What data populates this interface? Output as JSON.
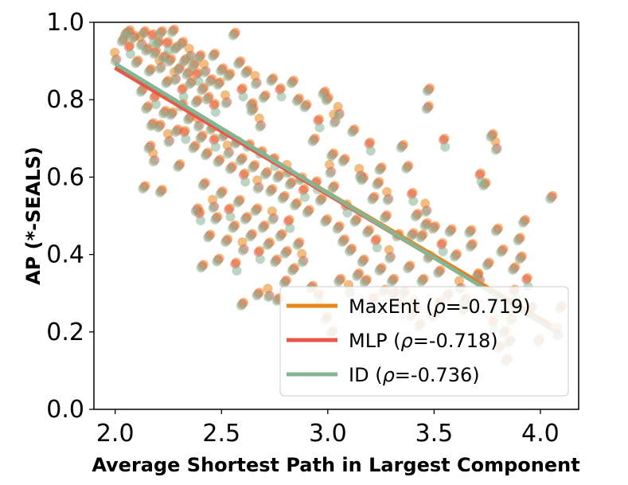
{
  "chart_data": {
    "type": "scatter",
    "title": "",
    "xlabel": "Average Shortest Path in Largest Component",
    "ylabel": "AP (*-SEALS)",
    "xlim": [
      1.9,
      4.18
    ],
    "ylim": [
      0.0,
      1.0
    ],
    "x_ticks": [
      "2.0",
      "2.5",
      "3.0",
      "3.5",
      "4.0"
    ],
    "y_ticks": [
      "0.0",
      "0.2",
      "0.4",
      "0.6",
      "0.8",
      "1.0"
    ],
    "grid": false,
    "legend_position": "lower-right",
    "series": [
      {
        "name": "MaxEnt",
        "rho_label": "-0.719",
        "color": "#e8861a",
        "fit": {
          "x": [
            2.0,
            4.05
          ],
          "y": [
            0.885,
            0.218
          ]
        }
      },
      {
        "name": "MLP",
        "rho_label": "-0.718",
        "color": "#e8574a",
        "fit": {
          "x": [
            2.0,
            4.05
          ],
          "y": [
            0.882,
            0.212
          ]
        }
      },
      {
        "name": "ID",
        "rho_label": "-0.736",
        "color": "#86b592",
        "fit": {
          "x": [
            2.0,
            4.08
          ],
          "y": [
            0.893,
            0.198
          ]
        }
      }
    ],
    "points": [
      [
        2.0,
        0.91
      ],
      [
        2.04,
        0.95
      ],
      [
        2.05,
        0.97
      ],
      [
        2.06,
        0.98
      ],
      [
        2.07,
        0.93
      ],
      [
        2.09,
        0.96
      ],
      [
        2.1,
        0.9
      ],
      [
        2.12,
        0.95
      ],
      [
        2.14,
        0.97
      ],
      [
        2.15,
        0.93
      ],
      [
        2.16,
        0.88
      ],
      [
        2.18,
        0.96
      ],
      [
        2.19,
        0.92
      ],
      [
        2.2,
        0.95
      ],
      [
        2.21,
        0.89
      ],
      [
        2.22,
        0.97
      ],
      [
        2.23,
        0.91
      ],
      [
        2.24,
        0.85
      ],
      [
        2.25,
        0.94
      ],
      [
        2.26,
        0.9
      ],
      [
        2.27,
        0.98
      ],
      [
        2.28,
        0.86
      ],
      [
        2.29,
        0.93
      ],
      [
        2.3,
        0.88
      ],
      [
        2.31,
        0.95
      ],
      [
        2.32,
        0.82
      ],
      [
        2.33,
        0.9
      ],
      [
        2.34,
        0.87
      ],
      [
        2.35,
        0.92
      ],
      [
        2.36,
        0.84
      ],
      [
        2.37,
        0.89
      ],
      [
        2.38,
        0.8
      ],
      [
        2.39,
        0.86
      ],
      [
        2.4,
        0.91
      ],
      [
        2.41,
        0.83
      ],
      [
        2.42,
        0.88
      ],
      [
        2.44,
        0.8
      ],
      [
        2.45,
        0.85
      ],
      [
        2.46,
        0.92
      ],
      [
        2.47,
        0.78
      ],
      [
        2.49,
        0.84
      ],
      [
        2.5,
        0.88
      ],
      [
        2.52,
        0.8
      ],
      [
        2.54,
        0.86
      ],
      [
        2.56,
        0.97
      ],
      [
        2.58,
        0.9
      ],
      [
        2.6,
        0.82
      ],
      [
        2.62,
        0.87
      ],
      [
        2.64,
        0.79
      ],
      [
        2.66,
        0.85
      ],
      [
        2.13,
        0.82
      ],
      [
        2.15,
        0.78
      ],
      [
        2.17,
        0.74
      ],
      [
        2.19,
        0.8
      ],
      [
        2.21,
        0.73
      ],
      [
        2.23,
        0.77
      ],
      [
        2.25,
        0.7
      ],
      [
        2.27,
        0.76
      ],
      [
        2.29,
        0.72
      ],
      [
        2.31,
        0.79
      ],
      [
        2.33,
        0.71
      ],
      [
        2.35,
        0.75
      ],
      [
        2.37,
        0.68
      ],
      [
        2.39,
        0.74
      ],
      [
        2.41,
        0.7
      ],
      [
        2.43,
        0.66
      ],
      [
        2.45,
        0.73
      ],
      [
        2.47,
        0.69
      ],
      [
        2.49,
        0.64
      ],
      [
        2.51,
        0.71
      ],
      [
        2.53,
        0.67
      ],
      [
        2.55,
        0.62
      ],
      [
        2.57,
        0.69
      ],
      [
        2.59,
        0.65
      ],
      [
        2.61,
        0.6
      ],
      [
        2.63,
        0.68
      ],
      [
        2.65,
        0.63
      ],
      [
        2.67,
        0.58
      ],
      [
        2.69,
        0.66
      ],
      [
        2.71,
        0.61
      ],
      [
        2.73,
        0.57
      ],
      [
        2.75,
        0.64
      ],
      [
        2.77,
        0.6
      ],
      [
        2.79,
        0.55
      ],
      [
        2.81,
        0.62
      ],
      [
        2.83,
        0.58
      ],
      [
        2.85,
        0.53
      ],
      [
        2.87,
        0.6
      ],
      [
        2.89,
        0.56
      ],
      [
        2.91,
        0.51
      ],
      [
        2.16,
        0.68
      ],
      [
        2.18,
        0.65
      ],
      [
        2.22,
        0.56
      ],
      [
        2.3,
        0.63
      ],
      [
        2.38,
        0.52
      ],
      [
        2.4,
        0.5
      ],
      [
        2.42,
        0.58
      ],
      [
        2.44,
        0.45
      ],
      [
        2.46,
        0.53
      ],
      [
        2.48,
        0.49
      ],
      [
        2.5,
        0.56
      ],
      [
        2.52,
        0.44
      ],
      [
        2.54,
        0.51
      ],
      [
        2.56,
        0.47
      ],
      [
        2.58,
        0.54
      ],
      [
        2.6,
        0.42
      ],
      [
        2.62,
        0.49
      ],
      [
        2.64,
        0.45
      ],
      [
        2.66,
        0.52
      ],
      [
        2.68,
        0.4
      ],
      [
        2.7,
        0.47
      ],
      [
        2.72,
        0.43
      ],
      [
        2.74,
        0.5
      ],
      [
        2.76,
        0.38
      ],
      [
        2.78,
        0.45
      ],
      [
        2.8,
        0.41
      ],
      [
        2.82,
        0.48
      ],
      [
        2.84,
        0.36
      ],
      [
        2.86,
        0.43
      ],
      [
        2.88,
        0.39
      ],
      [
        2.14,
        0.57
      ],
      [
        2.41,
        0.37
      ],
      [
        2.48,
        0.39
      ],
      [
        2.57,
        0.37
      ],
      [
        2.6,
        0.27
      ],
      [
        2.67,
        0.3
      ],
      [
        2.72,
        0.3
      ],
      [
        2.77,
        0.28
      ],
      [
        2.8,
        0.33
      ],
      [
        2.92,
        0.32
      ],
      [
        2.95,
        0.58
      ],
      [
        2.97,
        0.54
      ],
      [
        2.99,
        0.49
      ],
      [
        3.01,
        0.62
      ],
      [
        3.03,
        0.57
      ],
      [
        3.05,
        0.47
      ],
      [
        3.07,
        0.44
      ],
      [
        3.09,
        0.52
      ],
      [
        3.11,
        0.41
      ],
      [
        3.13,
        0.49
      ],
      [
        3.15,
        0.61
      ],
      [
        3.17,
        0.38
      ],
      [
        3.19,
        0.46
      ],
      [
        3.21,
        0.55
      ],
      [
        3.23,
        0.43
      ],
      [
        3.25,
        0.36
      ],
      [
        3.27,
        0.5
      ],
      [
        3.29,
        0.4
      ],
      [
        3.31,
        0.33
      ],
      [
        3.33,
        0.45
      ],
      [
        2.93,
        0.7
      ],
      [
        2.96,
        0.74
      ],
      [
        3.0,
        0.8
      ],
      [
        3.02,
        0.66
      ],
      [
        3.05,
        0.77
      ],
      [
        3.08,
        0.64
      ],
      [
        3.12,
        0.72
      ],
      [
        3.16,
        0.6
      ],
      [
        3.2,
        0.68
      ],
      [
        3.25,
        0.62
      ],
      [
        2.98,
        0.82
      ],
      [
        3.03,
        0.75
      ],
      [
        2.9,
        0.78
      ],
      [
        2.86,
        0.8
      ],
      [
        2.83,
        0.85
      ],
      [
        2.78,
        0.82
      ],
      [
        2.74,
        0.85
      ],
      [
        2.7,
        0.81
      ],
      [
        2.68,
        0.74
      ],
      [
        2.65,
        0.77
      ],
      [
        3.35,
        0.68
      ],
      [
        3.37,
        0.63
      ],
      [
        3.4,
        0.55
      ],
      [
        3.42,
        0.5
      ],
      [
        3.44,
        0.45
      ],
      [
        3.46,
        0.52
      ],
      [
        3.48,
        0.39
      ],
      [
        3.5,
        0.47
      ],
      [
        3.52,
        0.36
      ],
      [
        3.54,
        0.42
      ],
      [
        3.36,
        0.3
      ],
      [
        3.38,
        0.37
      ],
      [
        3.41,
        0.27
      ],
      [
        3.45,
        0.33
      ],
      [
        3.47,
        0.78
      ],
      [
        3.47,
        0.83
      ],
      [
        3.55,
        0.69
      ],
      [
        3.58,
        0.46
      ],
      [
        3.6,
        0.4
      ],
      [
        3.62,
        0.32
      ],
      [
        3.65,
        0.28
      ],
      [
        3.67,
        0.46
      ],
      [
        3.7,
        0.35
      ],
      [
        3.72,
        0.6
      ],
      [
        3.74,
        0.58
      ],
      [
        3.77,
        0.71
      ],
      [
        3.79,
        0.68
      ],
      [
        3.8,
        0.46
      ],
      [
        3.82,
        0.41
      ],
      [
        3.75,
        0.38
      ],
      [
        3.78,
        0.22
      ],
      [
        3.81,
        0.16
      ],
      [
        3.84,
        0.13
      ],
      [
        3.86,
        0.24
      ],
      [
        3.88,
        0.36
      ],
      [
        3.9,
        0.44
      ],
      [
        3.92,
        0.49
      ],
      [
        3.94,
        0.33
      ],
      [
        3.96,
        0.26
      ],
      [
        4.05,
        0.55
      ],
      [
        4.08,
        0.2
      ],
      [
        4.1,
        0.26
      ],
      [
        3.83,
        0.2
      ],
      [
        3.85,
        0.18
      ],
      [
        3.88,
        0.3
      ],
      [
        3.91,
        0.39
      ],
      [
        3.99,
        0.18
      ],
      [
        3.71,
        0.34
      ],
      [
        3.68,
        0.42
      ],
      [
        3.64,
        0.26
      ],
      [
        3.56,
        0.3
      ],
      [
        3.53,
        0.27
      ],
      [
        3.5,
        0.24
      ],
      [
        3.43,
        0.22
      ],
      [
        3.39,
        0.25
      ],
      [
        3.34,
        0.27
      ],
      [
        3.31,
        0.3
      ],
      [
        3.26,
        0.31
      ],
      [
        3.22,
        0.28
      ],
      [
        3.18,
        0.33
      ],
      [
        3.14,
        0.35
      ],
      [
        3.1,
        0.31
      ],
      [
        3.06,
        0.33
      ],
      [
        3.02,
        0.2
      ],
      [
        2.99,
        0.24
      ],
      [
        2.96,
        0.29
      ],
      [
        3.4,
        0.45
      ],
      [
        3.46,
        0.48
      ],
      [
        3.28,
        0.55
      ],
      [
        3.24,
        0.58
      ]
    ]
  }
}
